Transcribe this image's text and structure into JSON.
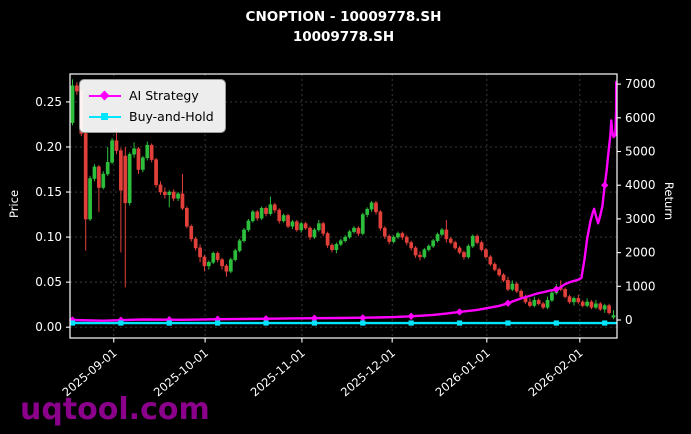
{
  "title": {
    "line1": "CNOPTION - 10009778.SH",
    "line2": "10009778.SH"
  },
  "watermark": "uqtool.com",
  "colors": {
    "background": "#000000",
    "text": "#ffffff",
    "grid": "#555555",
    "candle_up": "#2dbe3c",
    "candle_down": "#e2403a",
    "ai_line": "#ff00ff",
    "bh_line": "#00e5ff",
    "watermark": "#8b008b",
    "legend_text": "#000000"
  },
  "legend": {
    "entries": [
      {
        "label": "AI Strategy",
        "color": "#ff00ff",
        "marker": "diamond"
      },
      {
        "label": "Buy-and-Hold",
        "color": "#00e5ff",
        "marker": "square"
      }
    ]
  },
  "chart_data": {
    "type": "candlestick_with_lines",
    "title": "CNOPTION - 10009778.SH",
    "subtitle": "10009778.SH",
    "grid": "dashed",
    "legend_position": "upper-left",
    "x_axis": {
      "ticks": [
        {
          "label": "2025-09-01",
          "pos": 0.08
        },
        {
          "label": "2025-10-01",
          "pos": 0.247
        },
        {
          "label": "2025-11-01",
          "pos": 0.424
        },
        {
          "label": "2025-12-01",
          "pos": 0.589
        },
        {
          "label": "2026-01-01",
          "pos": 0.762
        },
        {
          "label": "2026-02-01",
          "pos": 0.932
        }
      ]
    },
    "price_axis": {
      "label": "Price",
      "min": -0.012,
      "max": 0.281,
      "ticks": [
        0.0,
        0.05,
        0.1,
        0.15,
        0.2,
        0.25
      ]
    },
    "return_axis": {
      "label": "Return",
      "min": -534,
      "max": 7300,
      "ticks": [
        0,
        1000,
        2000,
        3000,
        4000,
        5000,
        6000,
        7000
      ]
    },
    "candles": [
      [
        0.227,
        0.275,
        0.224,
        0.268
      ],
      [
        0.268,
        0.272,
        0.258,
        0.262
      ],
      [
        0.262,
        0.264,
        0.212,
        0.215
      ],
      [
        0.215,
        0.218,
        0.085,
        0.12
      ],
      [
        0.12,
        0.168,
        0.118,
        0.165
      ],
      [
        0.165,
        0.181,
        0.162,
        0.178
      ],
      [
        0.178,
        0.18,
        0.128,
        0.155
      ],
      [
        0.155,
        0.173,
        0.153,
        0.17
      ],
      [
        0.17,
        0.2,
        0.168,
        0.183
      ],
      [
        0.183,
        0.21,
        0.181,
        0.207
      ],
      [
        0.207,
        0.221,
        0.192,
        0.196
      ],
      [
        0.196,
        0.199,
        0.083,
        0.152
      ],
      [
        0.19,
        0.2,
        0.044,
        0.138
      ],
      [
        0.138,
        0.194,
        0.135,
        0.192
      ],
      [
        0.192,
        0.205,
        0.188,
        0.198
      ],
      [
        0.198,
        0.2,
        0.17,
        0.175
      ],
      [
        0.175,
        0.19,
        0.172,
        0.188
      ],
      [
        0.188,
        0.206,
        0.185,
        0.202
      ],
      [
        0.202,
        0.204,
        0.183,
        0.186
      ],
      [
        0.186,
        0.188,
        0.155,
        0.158
      ],
      [
        0.158,
        0.162,
        0.147,
        0.15
      ],
      [
        0.15,
        0.155,
        0.143,
        0.147
      ],
      [
        0.147,
        0.152,
        0.133,
        0.15
      ],
      [
        0.15,
        0.153,
        0.14,
        0.143
      ],
      [
        0.143,
        0.15,
        0.14,
        0.148
      ],
      [
        0.148,
        0.17,
        0.13,
        0.132
      ],
      [
        0.132,
        0.134,
        0.11,
        0.112
      ],
      [
        0.112,
        0.114,
        0.095,
        0.098
      ],
      [
        0.098,
        0.1,
        0.085,
        0.088
      ],
      [
        0.088,
        0.092,
        0.072,
        0.078
      ],
      [
        0.078,
        0.08,
        0.062,
        0.068
      ],
      [
        0.068,
        0.074,
        0.064,
        0.072
      ],
      [
        0.072,
        0.084,
        0.07,
        0.082
      ],
      [
        0.082,
        0.084,
        0.072,
        0.075
      ],
      [
        0.075,
        0.077,
        0.064,
        0.068
      ],
      [
        0.068,
        0.07,
        0.056,
        0.062
      ],
      [
        0.062,
        0.077,
        0.06,
        0.075
      ],
      [
        0.075,
        0.087,
        0.073,
        0.085
      ],
      [
        0.085,
        0.098,
        0.083,
        0.096
      ],
      [
        0.096,
        0.11,
        0.094,
        0.108
      ],
      [
        0.108,
        0.12,
        0.106,
        0.118
      ],
      [
        0.118,
        0.13,
        0.116,
        0.128
      ],
      [
        0.128,
        0.13,
        0.118,
        0.121
      ],
      [
        0.121,
        0.134,
        0.119,
        0.132
      ],
      [
        0.132,
        0.134,
        0.123,
        0.126
      ],
      [
        0.126,
        0.145,
        0.124,
        0.136
      ],
      [
        0.136,
        0.138,
        0.127,
        0.13
      ],
      [
        0.13,
        0.132,
        0.115,
        0.118
      ],
      [
        0.118,
        0.126,
        0.116,
        0.124
      ],
      [
        0.124,
        0.126,
        0.11,
        0.112
      ],
      [
        0.112,
        0.119,
        0.109,
        0.117
      ],
      [
        0.117,
        0.119,
        0.106,
        0.108
      ],
      [
        0.108,
        0.117,
        0.105,
        0.115
      ],
      [
        0.115,
        0.117,
        0.108,
        0.11
      ],
      [
        0.11,
        0.112,
        0.097,
        0.1
      ],
      [
        0.1,
        0.11,
        0.098,
        0.108
      ],
      [
        0.108,
        0.119,
        0.106,
        0.115
      ],
      [
        0.115,
        0.117,
        0.101,
        0.104
      ],
      [
        0.104,
        0.106,
        0.088,
        0.091
      ],
      [
        0.091,
        0.093,
        0.083,
        0.086
      ],
      [
        0.086,
        0.094,
        0.082,
        0.092
      ],
      [
        0.092,
        0.098,
        0.09,
        0.096
      ],
      [
        0.096,
        0.102,
        0.094,
        0.1
      ],
      [
        0.1,
        0.108,
        0.098,
        0.106
      ],
      [
        0.106,
        0.112,
        0.104,
        0.11
      ],
      [
        0.11,
        0.112,
        0.101,
        0.104
      ],
      [
        0.104,
        0.127,
        0.102,
        0.125
      ],
      [
        0.125,
        0.133,
        0.122,
        0.131
      ],
      [
        0.131,
        0.14,
        0.128,
        0.138
      ],
      [
        0.138,
        0.14,
        0.125,
        0.128
      ],
      [
        0.128,
        0.13,
        0.107,
        0.11
      ],
      [
        0.11,
        0.112,
        0.098,
        0.101
      ],
      [
        0.101,
        0.103,
        0.092,
        0.095
      ],
      [
        0.095,
        0.102,
        0.093,
        0.1
      ],
      [
        0.1,
        0.106,
        0.098,
        0.104
      ],
      [
        0.104,
        0.106,
        0.097,
        0.1
      ],
      [
        0.1,
        0.102,
        0.091,
        0.094
      ],
      [
        0.094,
        0.096,
        0.085,
        0.088
      ],
      [
        0.088,
        0.09,
        0.077,
        0.08
      ],
      [
        0.08,
        0.084,
        0.074,
        0.078
      ],
      [
        0.078,
        0.088,
        0.076,
        0.086
      ],
      [
        0.086,
        0.092,
        0.084,
        0.09
      ],
      [
        0.09,
        0.098,
        0.088,
        0.096
      ],
      [
        0.096,
        0.105,
        0.094,
        0.103
      ],
      [
        0.103,
        0.11,
        0.101,
        0.108
      ],
      [
        0.108,
        0.119,
        0.094,
        0.098
      ],
      [
        0.098,
        0.1,
        0.092,
        0.094
      ],
      [
        0.094,
        0.096,
        0.086,
        0.088
      ],
      [
        0.088,
        0.09,
        0.081,
        0.083
      ],
      [
        0.083,
        0.085,
        0.075,
        0.078
      ],
      [
        0.078,
        0.092,
        0.076,
        0.09
      ],
      [
        0.09,
        0.103,
        0.088,
        0.101
      ],
      [
        0.101,
        0.103,
        0.092,
        0.094
      ],
      [
        0.094,
        0.096,
        0.084,
        0.086
      ],
      [
        0.086,
        0.088,
        0.076,
        0.078
      ],
      [
        0.078,
        0.08,
        0.068,
        0.07
      ],
      [
        0.07,
        0.072,
        0.062,
        0.064
      ],
      [
        0.064,
        0.066,
        0.056,
        0.058
      ],
      [
        0.058,
        0.06,
        0.05,
        0.052
      ],
      [
        0.052,
        0.056,
        0.04,
        0.042
      ],
      [
        0.042,
        0.052,
        0.04,
        0.048
      ],
      [
        0.048,
        0.05,
        0.038,
        0.04
      ],
      [
        0.04,
        0.042,
        0.032,
        0.034
      ],
      [
        0.034,
        0.036,
        0.026,
        0.028
      ],
      [
        0.028,
        0.032,
        0.022,
        0.024
      ],
      [
        0.024,
        0.034,
        0.022,
        0.03
      ],
      [
        0.03,
        0.032,
        0.024,
        0.026
      ],
      [
        0.026,
        0.028,
        0.02,
        0.022
      ],
      [
        0.022,
        0.034,
        0.02,
        0.03
      ],
      [
        0.03,
        0.04,
        0.028,
        0.038
      ],
      [
        0.038,
        0.048,
        0.036,
        0.044
      ],
      [
        0.044,
        0.052,
        0.04,
        0.042
      ],
      [
        0.042,
        0.044,
        0.032,
        0.034
      ],
      [
        0.034,
        0.036,
        0.026,
        0.028
      ],
      [
        0.028,
        0.034,
        0.024,
        0.032
      ],
      [
        0.032,
        0.036,
        0.026,
        0.028
      ],
      [
        0.028,
        0.03,
        0.022,
        0.024
      ],
      [
        0.024,
        0.032,
        0.022,
        0.028
      ],
      [
        0.028,
        0.03,
        0.02,
        0.022
      ],
      [
        0.022,
        0.03,
        0.02,
        0.026
      ],
      [
        0.026,
        0.028,
        0.018,
        0.02
      ],
      [
        0.02,
        0.026,
        0.016,
        0.024
      ],
      [
        0.024,
        0.026,
        0.014,
        0.016
      ],
      [
        0.011,
        0.019,
        0.009,
        0.013
      ]
    ],
    "series": [
      {
        "name": "AI Strategy",
        "axis": "return",
        "color": "#ff00ff",
        "points": [
          [
            0,
            0
          ],
          [
            7,
            -20
          ],
          [
            16,
            15
          ],
          [
            25,
            5
          ],
          [
            34,
            25
          ],
          [
            43,
            35
          ],
          [
            52,
            50
          ],
          [
            61,
            60
          ],
          [
            68,
            70
          ],
          [
            73,
            85
          ],
          [
            77,
            110
          ],
          [
            82,
            150
          ],
          [
            85,
            190
          ],
          [
            88,
            240
          ],
          [
            92,
            300
          ],
          [
            94.5,
            360
          ],
          [
            97,
            420
          ],
          [
            98.6,
            480
          ],
          [
            100.2,
            555
          ],
          [
            102,
            640
          ],
          [
            103.6,
            700
          ],
          [
            105,
            760
          ],
          [
            106.1,
            800
          ],
          [
            107.3,
            830
          ],
          [
            108.4,
            870
          ],
          [
            109.5,
            890
          ],
          [
            110.7,
            950
          ],
          [
            111.8,
            1050
          ],
          [
            113,
            1120
          ],
          [
            114,
            1160
          ],
          [
            114.8,
            1185
          ],
          [
            115.7,
            1250
          ],
          [
            116.4,
            1800
          ],
          [
            117,
            2400
          ],
          [
            117.7,
            2900
          ],
          [
            118.2,
            3150
          ],
          [
            118.6,
            3300
          ],
          [
            119.1,
            3050
          ],
          [
            119.5,
            2870
          ],
          [
            120,
            3100
          ],
          [
            120.5,
            3400
          ],
          [
            120.9,
            3900
          ],
          [
            121.4,
            4400
          ],
          [
            121.8,
            4900
          ],
          [
            122.3,
            5500
          ],
          [
            122.5,
            5920
          ],
          [
            122.7,
            5600
          ],
          [
            123,
            5430
          ],
          [
            123.2,
            5460
          ],
          [
            123.4,
            5480
          ],
          [
            123.6,
            6200
          ],
          [
            123.9,
            7060
          ]
        ]
      },
      {
        "name": "Buy-and-Hold",
        "axis": "return",
        "color": "#00e5ff",
        "constant": -90
      }
    ],
    "marker_every": 11
  }
}
